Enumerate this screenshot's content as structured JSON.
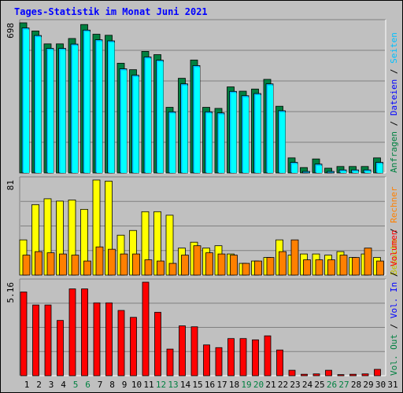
{
  "title": "Tages-Statistik im Monat Juni 2021",
  "colors": {
    "background": "#c0c0c0",
    "grid": "#808080",
    "title": "#0000ff",
    "anfragen": "#008040",
    "dateien": "#00c0ff",
    "seiten": "#00ffff",
    "besuche": "#ffff00",
    "rechner": "#ff8000",
    "vol_out": "#008040",
    "vol_in": "#0000ff",
    "volumen": "#ff0000",
    "weekend_tick": "#008040",
    "weekday_tick": "#000000"
  },
  "labels": {
    "right_top": [
      {
        "text": "Anfragen",
        "color": "#008040"
      },
      {
        "text": "Dateien",
        "color": "#0000ff"
      },
      {
        "text": "Seiten",
        "color": "#00c0ff"
      }
    ],
    "right_mid": [
      {
        "text": "Besuche",
        "color": "#c0c000"
      },
      {
        "text": "Rechner",
        "color": "#ff8000"
      }
    ],
    "right_bot": [
      {
        "text": "Vol. Out",
        "color": "#008040"
      },
      {
        "text": "Vol. In",
        "color": "#0000ff"
      },
      {
        "text": "Volumen",
        "color": "#ff0000"
      }
    ]
  },
  "chart_data": [
    {
      "type": "bar",
      "name": "Anfragen / Dateien / Seiten",
      "ymax_label": "698",
      "ylim": [
        0,
        698
      ],
      "x": [
        "1",
        "2",
        "3",
        "4",
        "5",
        "6",
        "7",
        "8",
        "9",
        "10",
        "11",
        "12",
        "13",
        "14",
        "15",
        "16",
        "17",
        "18",
        "19",
        "20",
        "21",
        "22",
        "23",
        "24",
        "25",
        "26",
        "27",
        "28",
        "29",
        "30"
      ],
      "series": [
        {
          "name": "Anfragen",
          "values": [
            698,
            660,
            600,
            600,
            625,
            690,
            645,
            640,
            510,
            480,
            565,
            550,
            305,
            440,
            525,
            305,
            300,
            400,
            380,
            390,
            435,
            310,
            70,
            25,
            65,
            22,
            30,
            30,
            30,
            70
          ]
        },
        {
          "name": "Dateien",
          "values": [
            685,
            650,
            590,
            590,
            610,
            675,
            630,
            625,
            495,
            465,
            550,
            535,
            295,
            425,
            510,
            295,
            290,
            390,
            370,
            380,
            425,
            300,
            60,
            18,
            52,
            18,
            25,
            25,
            25,
            60
          ]
        },
        {
          "name": "Seiten",
          "values": [
            685,
            650,
            590,
            590,
            610,
            675,
            630,
            625,
            495,
            465,
            550,
            535,
            295,
            425,
            510,
            295,
            290,
            390,
            370,
            380,
            425,
            300,
            60,
            18,
            52,
            18,
            25,
            25,
            25,
            60
          ]
        }
      ]
    },
    {
      "type": "bar",
      "name": "Besuche / Rechner",
      "ymax_label": "81",
      "ylim": [
        0,
        81
      ],
      "x": [
        "1",
        "2",
        "3",
        "4",
        "5",
        "6",
        "7",
        "8",
        "9",
        "10",
        "11",
        "12",
        "13",
        "14",
        "15",
        "16",
        "17",
        "18",
        "19",
        "20",
        "21",
        "22",
        "23",
        "24",
        "25",
        "26",
        "27",
        "28",
        "29",
        "30"
      ],
      "series": [
        {
          "name": "Besuche",
          "values": [
            30,
            60,
            65,
            63,
            64,
            56,
            81,
            80,
            34,
            38,
            54,
            54,
            51,
            23,
            28,
            23,
            25,
            18,
            10,
            12,
            15,
            30,
            17,
            18,
            18,
            17,
            20,
            15,
            18,
            15
          ]
        },
        {
          "name": "Rechner",
          "values": [
            17,
            20,
            19,
            18,
            17,
            12,
            24,
            22,
            18,
            18,
            13,
            12,
            10,
            17,
            25,
            19,
            18,
            17,
            10,
            12,
            15,
            20,
            30,
            13,
            13,
            13,
            17,
            15,
            23,
            12
          ]
        }
      ]
    },
    {
      "type": "bar",
      "name": "Volumen",
      "ymax_label": "5.16",
      "ylim": [
        0,
        5.16
      ],
      "x": [
        "1",
        "2",
        "3",
        "4",
        "5",
        "6",
        "7",
        "8",
        "9",
        "10",
        "11",
        "12",
        "13",
        "14",
        "15",
        "16",
        "17",
        "18",
        "19",
        "20",
        "21",
        "22",
        "23",
        "24",
        "25",
        "26",
        "27",
        "28",
        "29",
        "30"
      ],
      "series": [
        {
          "name": "Volumen",
          "values": [
            4.62,
            3.9,
            3.9,
            3.05,
            4.79,
            4.79,
            4.02,
            4.02,
            3.6,
            3.22,
            5.16,
            3.5,
            1.47,
            2.75,
            2.7,
            1.7,
            1.55,
            2.05,
            2.05,
            1.98,
            2.2,
            1.42,
            0.3,
            0.08,
            0.1,
            0.3,
            0.06,
            0.08,
            0.1,
            0.35
          ]
        }
      ]
    }
  ],
  "x_axis": {
    "ticks": [
      "1",
      "2",
      "3",
      "4",
      "5",
      "6",
      "7",
      "8",
      "9",
      "10",
      "11",
      "12",
      "13",
      "14",
      "15",
      "16",
      "17",
      "18",
      "19",
      "20",
      "21",
      "22",
      "23",
      "24",
      "25",
      "26",
      "27",
      "28",
      "29",
      "30",
      "31"
    ],
    "weekend": [
      "5",
      "6",
      "12",
      "13",
      "19",
      "20",
      "26",
      "27"
    ]
  }
}
